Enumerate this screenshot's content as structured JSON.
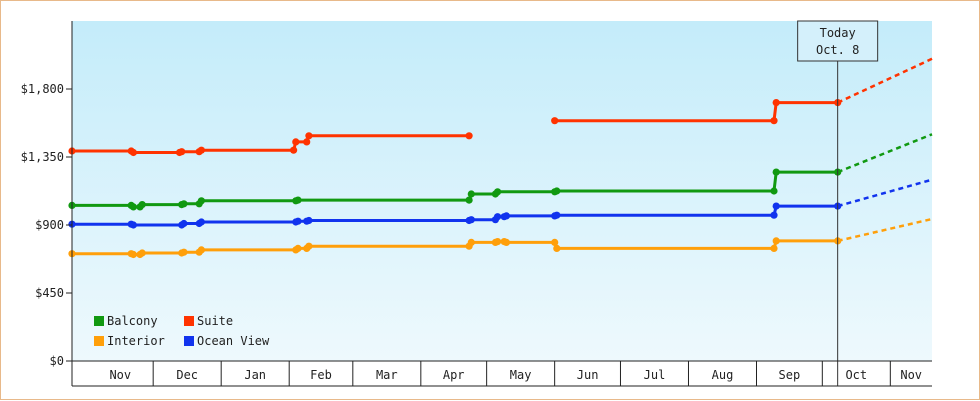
{
  "chart_data": {
    "type": "line",
    "x_axis": {
      "type": "date",
      "min": "2023-10-25",
      "max": "2024-11-20"
    },
    "ylim": [
      0,
      2250
    ],
    "y_ticks": [
      0,
      450,
      900,
      1350,
      1800
    ],
    "y_tick_labels": [
      "$0",
      "$450",
      "$900",
      "$1,350",
      "$1,800"
    ],
    "month_labels": [
      "Nov",
      "Dec",
      "Jan",
      "Feb",
      "Mar",
      "Apr",
      "May",
      "Jun",
      "Jul",
      "Aug",
      "Sep",
      "Oct",
      "Nov"
    ],
    "grid": false,
    "today": {
      "date": "2024-10-08",
      "label_line1": "Today",
      "label_line2": "Oct. 8"
    },
    "legend": {
      "placement": "bottom-left"
    },
    "series": [
      {
        "name": "Suite",
        "color": "#ff3300",
        "segments": [
          [
            [
              "2023-10-25",
              1390
            ],
            [
              "2023-11-21",
              1390
            ],
            [
              "2023-11-22",
              1380
            ],
            [
              "2023-12-13",
              1380
            ],
            [
              "2023-12-14",
              1385
            ],
            [
              "2023-12-22",
              1385
            ],
            [
              "2023-12-23",
              1395
            ],
            [
              "2024-02-03",
              1395
            ],
            [
              "2024-02-04",
              1450
            ],
            [
              "2024-02-09",
              1450
            ],
            [
              "2024-02-10",
              1490
            ],
            [
              "2024-04-23",
              1490
            ]
          ],
          [
            [
              "2024-06-01",
              1590
            ],
            [
              "2024-09-09",
              1590
            ],
            [
              "2024-09-10",
              1710
            ],
            [
              "2024-10-08",
              1710
            ]
          ]
        ],
        "projection": [
          [
            "2024-10-08",
            1710
          ],
          [
            "2024-11-20",
            2000
          ]
        ]
      },
      {
        "name": "Balcony",
        "color": "#119911",
        "segments": [
          [
            [
              "2023-10-25",
              1030
            ],
            [
              "2023-11-21",
              1030
            ],
            [
              "2023-11-22",
              1020
            ],
            [
              "2023-11-25",
              1020
            ],
            [
              "2023-11-26",
              1035
            ],
            [
              "2023-12-14",
              1035
            ],
            [
              "2023-12-15",
              1040
            ],
            [
              "2023-12-22",
              1040
            ],
            [
              "2023-12-23",
              1060
            ],
            [
              "2024-02-04",
              1060
            ],
            [
              "2024-02-05",
              1065
            ],
            [
              "2024-04-23",
              1065
            ],
            [
              "2024-04-24",
              1105
            ],
            [
              "2024-05-05",
              1105
            ],
            [
              "2024-05-06",
              1120
            ],
            [
              "2024-06-01",
              1120
            ],
            [
              "2024-06-02",
              1125
            ],
            [
              "2024-09-09",
              1125
            ],
            [
              "2024-09-10",
              1250
            ],
            [
              "2024-10-08",
              1250
            ]
          ]
        ],
        "projection": [
          [
            "2024-10-08",
            1250
          ],
          [
            "2024-11-20",
            1500
          ]
        ]
      },
      {
        "name": "Ocean View",
        "color": "#1133ee",
        "segments": [
          [
            [
              "2023-10-25",
              905
            ],
            [
              "2023-11-21",
              905
            ],
            [
              "2023-11-22",
              900
            ],
            [
              "2023-12-14",
              900
            ],
            [
              "2023-12-15",
              910
            ],
            [
              "2023-12-22",
              910
            ],
            [
              "2023-12-23",
              920
            ],
            [
              "2024-02-04",
              920
            ],
            [
              "2024-02-05",
              925
            ],
            [
              "2024-02-09",
              925
            ],
            [
              "2024-02-10",
              930
            ],
            [
              "2024-04-23",
              930
            ],
            [
              "2024-04-24",
              935
            ],
            [
              "2024-05-05",
              935
            ],
            [
              "2024-05-06",
              955
            ],
            [
              "2024-05-09",
              955
            ],
            [
              "2024-05-10",
              960
            ],
            [
              "2024-06-01",
              960
            ],
            [
              "2024-06-02",
              965
            ],
            [
              "2024-09-09",
              965
            ],
            [
              "2024-09-10",
              1025
            ],
            [
              "2024-10-08",
              1025
            ]
          ]
        ],
        "projection": [
          [
            "2024-10-08",
            1025
          ],
          [
            "2024-11-20",
            1200
          ]
        ]
      },
      {
        "name": "Interior",
        "color": "#ff9f0a",
        "segments": [
          [
            [
              "2023-10-25",
              710
            ],
            [
              "2023-11-21",
              710
            ],
            [
              "2023-11-22",
              705
            ],
            [
              "2023-11-25",
              705
            ],
            [
              "2023-11-26",
              715
            ],
            [
              "2023-12-14",
              715
            ],
            [
              "2023-12-15",
              720
            ],
            [
              "2023-12-22",
              720
            ],
            [
              "2023-12-23",
              735
            ],
            [
              "2024-02-04",
              735
            ],
            [
              "2024-02-05",
              745
            ],
            [
              "2024-02-09",
              745
            ],
            [
              "2024-02-10",
              760
            ],
            [
              "2024-04-23",
              760
            ],
            [
              "2024-04-24",
              785
            ],
            [
              "2024-05-05",
              785
            ],
            [
              "2024-05-06",
              790
            ],
            [
              "2024-05-09",
              790
            ],
            [
              "2024-05-10",
              785
            ],
            [
              "2024-06-01",
              785
            ],
            [
              "2024-06-02",
              745
            ],
            [
              "2024-09-09",
              745
            ],
            [
              "2024-09-10",
              795
            ],
            [
              "2024-10-08",
              795
            ]
          ]
        ],
        "projection": [
          [
            "2024-10-08",
            795
          ],
          [
            "2024-11-20",
            940
          ]
        ]
      }
    ],
    "legend_entries": [
      {
        "name": "Balcony",
        "color": "#119911"
      },
      {
        "name": "Suite",
        "color": "#ff3300"
      },
      {
        "name": "Interior",
        "color": "#ff9f0a"
      },
      {
        "name": "Ocean View",
        "color": "#1133ee"
      }
    ]
  }
}
